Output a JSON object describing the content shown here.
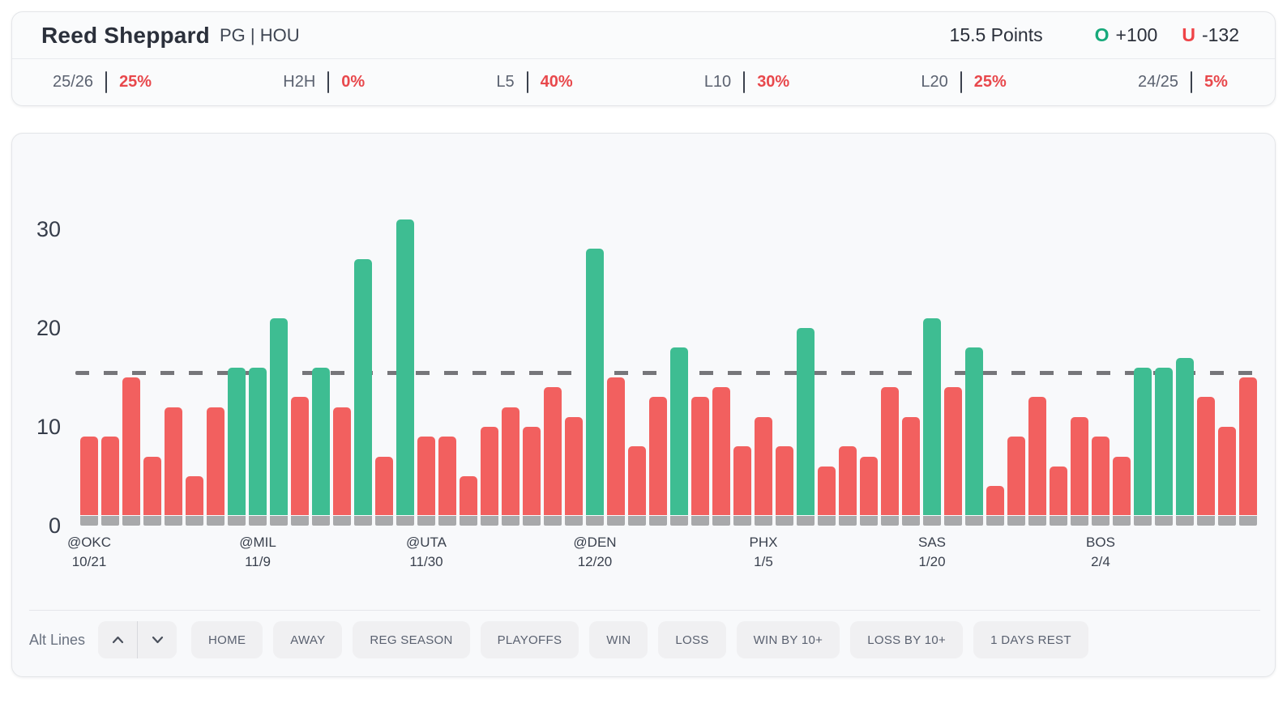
{
  "header": {
    "player": "Reed Sheppard",
    "position_team": "PG | HOU",
    "line_label": "15.5 Points",
    "over": {
      "symbol": "O",
      "odds": "+100"
    },
    "under": {
      "symbol": "U",
      "odds": "-132"
    }
  },
  "stats": [
    {
      "label": "25/26",
      "value": "25%"
    },
    {
      "label": "H2H",
      "value": "0%"
    },
    {
      "label": "L5",
      "value": "40%"
    },
    {
      "label": "L10",
      "value": "30%"
    },
    {
      "label": "L20",
      "value": "25%"
    },
    {
      "label": "24/25",
      "value": "5%"
    }
  ],
  "chart_data": {
    "type": "bar",
    "title": "Reed Sheppard game-by-game points vs 15.5 line",
    "line": 15.5,
    "yticks": [
      0,
      10,
      20,
      30
    ],
    "ylim": [
      0,
      38
    ],
    "values": [
      9,
      9,
      15,
      7,
      12,
      5,
      12,
      16,
      16,
      21,
      13,
      16,
      12,
      27,
      7,
      31,
      9,
      9,
      5,
      10,
      12,
      10,
      14,
      11,
      28,
      15,
      8,
      13,
      18,
      13,
      14,
      8,
      11,
      8,
      20,
      6,
      8,
      7,
      14,
      11,
      21,
      14,
      18,
      4,
      9,
      13,
      6,
      11,
      9,
      7,
      16,
      16,
      17,
      13,
      10,
      15
    ],
    "x_tick_labels": [
      {
        "bar_index": 0,
        "team": "@OKC",
        "date": "10/21"
      },
      {
        "bar_index": 8,
        "team": "@MIL",
        "date": "11/9"
      },
      {
        "bar_index": 16,
        "team": "@UTA",
        "date": "11/30"
      },
      {
        "bar_index": 24,
        "team": "@DEN",
        "date": "12/20"
      },
      {
        "bar_index": 32,
        "team": "PHX",
        "date": "1/5"
      },
      {
        "bar_index": 40,
        "team": "SAS",
        "date": "1/20"
      },
      {
        "bar_index": 48,
        "team": "BOS",
        "date": "2/4"
      }
    ],
    "colors": {
      "over": "#3ebd92",
      "under": "#f2605f",
      "base": "#a8a9ab",
      "line": "#76767a"
    }
  },
  "controls": {
    "alt_lines_label": "Alt Lines",
    "filters": [
      "HOME",
      "AWAY",
      "REG SEASON",
      "PLAYOFFS",
      "WIN",
      "LOSS",
      "WIN BY 10+",
      "LOSS BY 10+",
      "1 DAYS REST"
    ]
  }
}
